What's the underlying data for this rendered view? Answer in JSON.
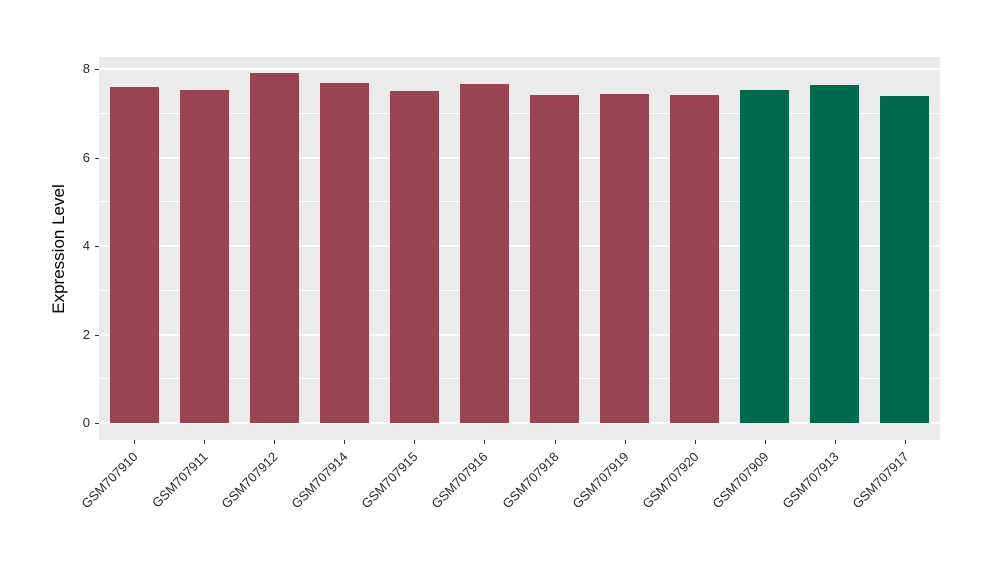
{
  "chart_data": {
    "type": "bar",
    "title": "",
    "xlabel": "",
    "ylabel": "Expression Level",
    "ylim": [
      0,
      8.3
    ],
    "yticks": [
      0,
      2,
      4,
      6,
      8
    ],
    "yticks_minor": [
      1,
      3,
      5,
      7
    ],
    "grid": true,
    "legend": false,
    "panel_background": "#EBEBEB",
    "grid_color": "#FFFFFF",
    "categories": [
      "GSM707910",
      "GSM707911",
      "GSM707912",
      "GSM707914",
      "GSM707915",
      "GSM707916",
      "GSM707918",
      "GSM707919",
      "GSM707920",
      "GSM707909",
      "GSM707913",
      "GSM707917"
    ],
    "values": [
      7.6,
      7.53,
      7.9,
      7.69,
      7.51,
      7.66,
      7.42,
      7.43,
      7.42,
      7.52,
      7.64,
      7.4
    ],
    "bar_groups": [
      "red",
      "red",
      "red",
      "red",
      "red",
      "red",
      "red",
      "red",
      "red",
      "green",
      "green",
      "green"
    ],
    "group_colors": {
      "red": "#9B4451",
      "green": "#016A4C"
    }
  }
}
